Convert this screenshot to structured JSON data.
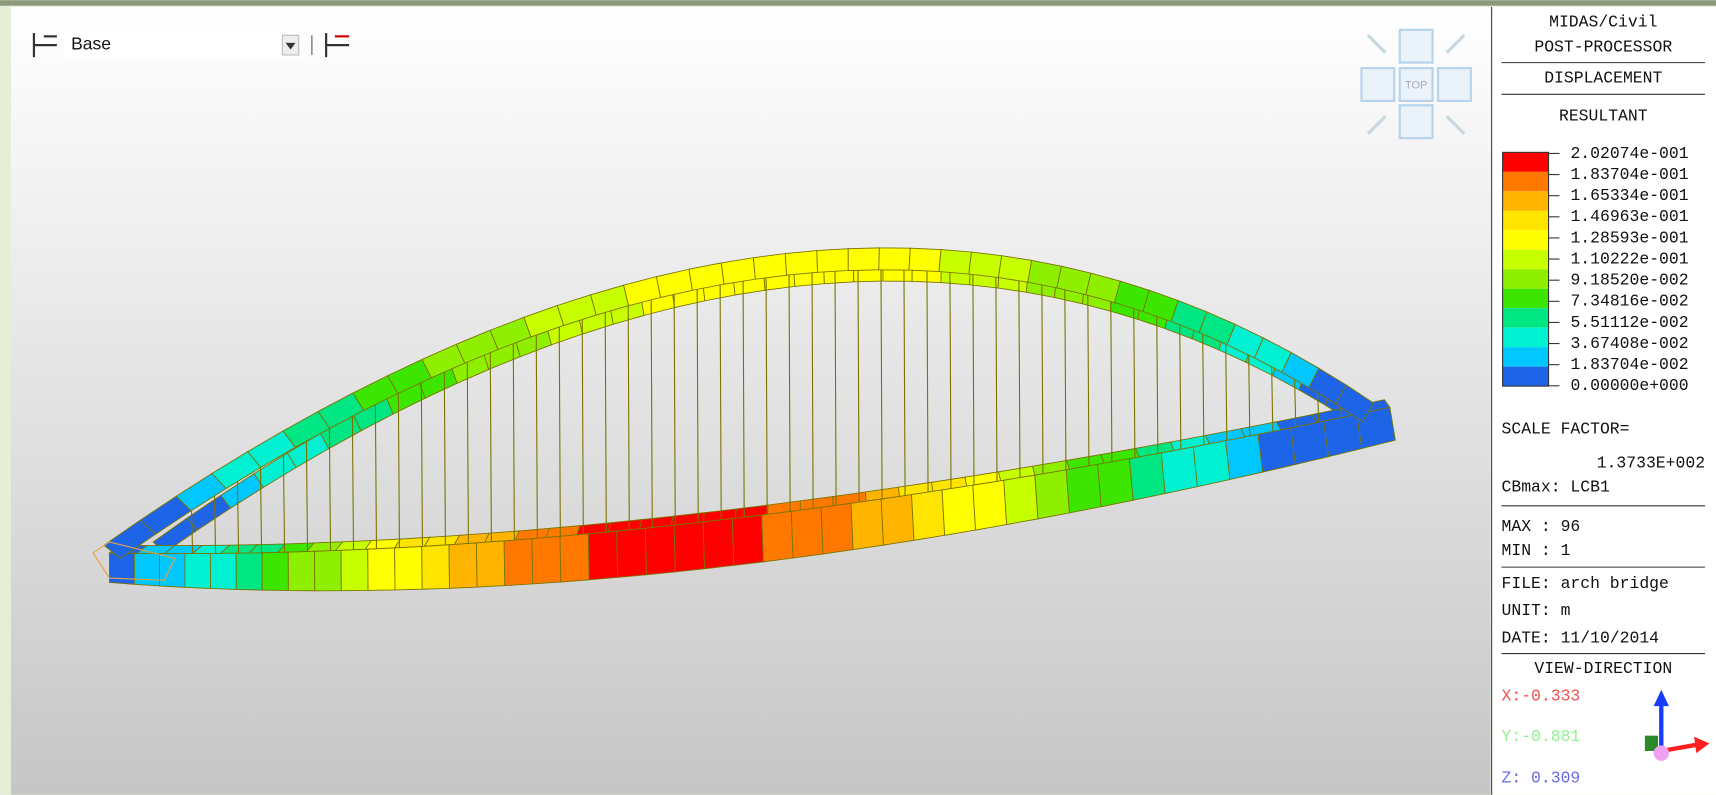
{
  "toolbar": {
    "view_label": "Base"
  },
  "view_cube": {
    "label": "TOP"
  },
  "panel": {
    "program": "MIDAS/Civil",
    "processor": "POST-PROCESSOR",
    "result_type": "DISPLACEMENT",
    "component": "RESULTANT",
    "legend": [
      {
        "label": "2.02074e-001",
        "color": "#ff0000"
      },
      {
        "label": "1.83704e-001",
        "color": "#ff7800"
      },
      {
        "label": "1.65334e-001",
        "color": "#ffb400"
      },
      {
        "label": "1.46963e-001",
        "color": "#ffe400"
      },
      {
        "label": "1.28593e-001",
        "color": "#ffff00"
      },
      {
        "label": "1.10222e-001",
        "color": "#c8ff00"
      },
      {
        "label": "9.18520e-002",
        "color": "#8ef000"
      },
      {
        "label": "7.34816e-002",
        "color": "#3ce600"
      },
      {
        "label": "5.51112e-002",
        "color": "#00e682"
      },
      {
        "label": "3.67408e-002",
        "color": "#00f0d2"
      },
      {
        "label": "1.83704e-002",
        "color": "#00c8ff"
      },
      {
        "label": "0.00000e+000",
        "color": "#1e64e6"
      }
    ],
    "scale_factor_label": "SCALE FACTOR=",
    "scale_factor": "1.3733E+002",
    "cbmax": "CBmax: LCB1",
    "max": "MAX : 96",
    "min": "MIN : 1",
    "file": "FILE: arch bridge",
    "unit": "UNIT: m",
    "date": "DATE: 11/10/2014",
    "view_direction": {
      "title": "VIEW-DIRECTION",
      "x": "X:-0.333",
      "y": "Y:-0.881",
      "z": "Z: 0.309"
    }
  }
}
